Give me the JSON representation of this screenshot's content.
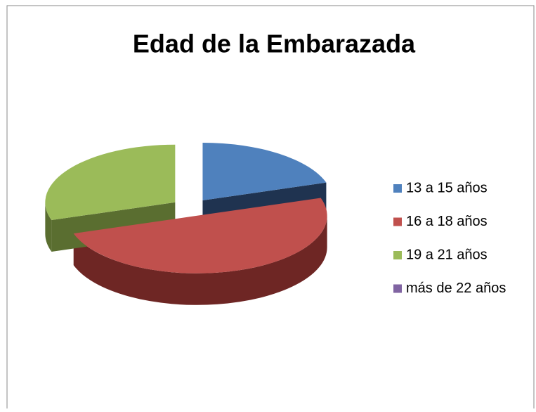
{
  "chart_data": {
    "type": "pie3d",
    "title": "Edad de la Embarazada",
    "categories": [
      "13 a 15 años",
      "16 a 18 años",
      "19 a 21 años",
      "más de 22 años"
    ],
    "values": [
      20,
      50,
      30,
      0
    ],
    "colors": [
      "#4f81bd",
      "#c0504d",
      "#9bbb59",
      "#8064a2"
    ],
    "side_colors": [
      "#1f3350",
      "#6e2624",
      "#5a6e30",
      "#4a3a60"
    ],
    "legend": "right"
  }
}
